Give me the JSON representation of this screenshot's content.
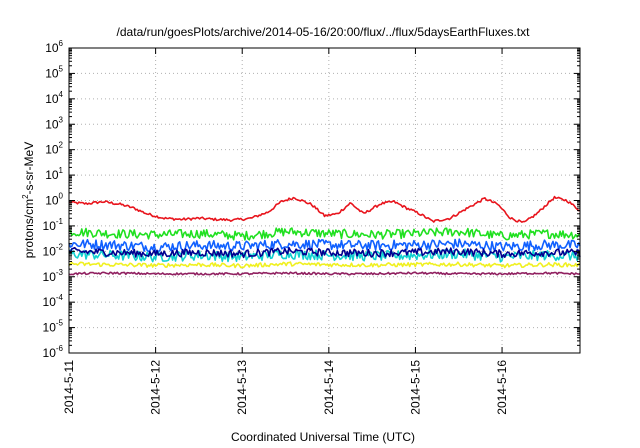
{
  "chart_data": {
    "type": "line",
    "title": "/data/run/goesPlots/archive/2014-05-16/20:00/flux/../flux/5daysEarthFluxes.txt",
    "xlabel": "Coordinated Universal Time (UTC)",
    "ylabel_parts": [
      "protons/cm",
      "2",
      "-s-sr-MeV"
    ],
    "yscale": "log",
    "ylim": [
      1e-06,
      1000000.0
    ],
    "xlim_days": [
      0,
      5.9
    ],
    "y_ticks": [
      {
        "base": "10",
        "exp": "-6",
        "value": -6
      },
      {
        "base": "10",
        "exp": "-5",
        "value": -5
      },
      {
        "base": "10",
        "exp": "-4",
        "value": -4
      },
      {
        "base": "10",
        "exp": "-3",
        "value": -3
      },
      {
        "base": "10",
        "exp": "-2",
        "value": -2
      },
      {
        "base": "10",
        "exp": "-1",
        "value": -1
      },
      {
        "base": "10",
        "exp": "0",
        "value": 0
      },
      {
        "base": "10",
        "exp": "1",
        "value": 1
      },
      {
        "base": "10",
        "exp": "2",
        "value": 2
      },
      {
        "base": "10",
        "exp": "3",
        "value": 3
      },
      {
        "base": "10",
        "exp": "4",
        "value": 4
      },
      {
        "base": "10",
        "exp": "5",
        "value": 5
      },
      {
        "base": "10",
        "exp": "6",
        "value": 6
      }
    ],
    "x_ticks": [
      {
        "label": "2014-5-11",
        "day": 0
      },
      {
        "label": "2014-5-12",
        "day": 1
      },
      {
        "label": "2014-5-13",
        "day": 2
      },
      {
        "label": "2014-5-14",
        "day": 3
      },
      {
        "label": "2014-5-15",
        "day": 4
      },
      {
        "label": "2014-5-16",
        "day": 5
      }
    ],
    "grid": true,
    "series": [
      {
        "color": "#e8141c",
        "x": [
          0,
          0.2,
          0.4,
          0.6,
          0.75,
          0.9,
          1.1,
          1.3,
          1.5,
          1.7,
          1.9,
          2.1,
          2.3,
          2.45,
          2.6,
          2.8,
          2.95,
          3.1,
          3.25,
          3.4,
          3.6,
          3.75,
          3.9,
          4.05,
          4.2,
          4.4,
          4.6,
          4.8,
          4.95,
          5.1,
          5.25,
          5.4,
          5.6,
          5.75,
          5.9
        ],
        "y": [
          0.85,
          0.75,
          0.9,
          0.7,
          0.5,
          0.3,
          0.2,
          0.18,
          0.2,
          0.18,
          0.17,
          0.2,
          0.35,
          0.9,
          1.3,
          0.7,
          0.25,
          0.3,
          0.8,
          0.3,
          0.75,
          0.9,
          0.5,
          0.3,
          0.15,
          0.2,
          0.5,
          1.2,
          0.7,
          0.2,
          0.13,
          0.3,
          1.3,
          1.0,
          0.4
        ]
      },
      {
        "color": "#20e020",
        "x": [
          0,
          0.5,
          1,
          1.5,
          2,
          2.5,
          3,
          3.5,
          4,
          4.5,
          5,
          5.5,
          5.9
        ],
        "y": [
          0.06,
          0.05,
          0.045,
          0.05,
          0.04,
          0.06,
          0.05,
          0.045,
          0.05,
          0.06,
          0.04,
          0.05,
          0.045
        ]
      },
      {
        "color": "#1060ff",
        "x": [
          0,
          0.5,
          1,
          1.5,
          2,
          2.5,
          3,
          3.5,
          4,
          4.5,
          5,
          5.5,
          5.9
        ],
        "y": [
          0.02,
          0.018,
          0.015,
          0.017,
          0.016,
          0.02,
          0.018,
          0.017,
          0.018,
          0.02,
          0.015,
          0.018,
          0.017
        ]
      },
      {
        "color": "#10d0d0",
        "x": [
          0,
          0.5,
          1,
          1.5,
          2,
          2.5,
          3,
          3.5,
          4,
          4.5,
          5,
          5.5,
          5.9
        ],
        "y": [
          0.008,
          0.007,
          0.006,
          0.007,
          0.006,
          0.008,
          0.007,
          0.0065,
          0.007,
          0.008,
          0.006,
          0.007,
          0.0065
        ]
      },
      {
        "color": "#000090",
        "x": [
          0,
          0.5,
          1,
          1.5,
          2,
          2.5,
          3,
          3.5,
          4,
          4.5,
          5,
          5.5,
          5.9
        ],
        "y": [
          0.01,
          0.009,
          0.008,
          0.009,
          0.008,
          0.01,
          0.009,
          0.0085,
          0.009,
          0.01,
          0.008,
          0.009,
          0.0085
        ]
      },
      {
        "color": "#f0f020",
        "x": [
          0,
          0.5,
          1,
          1.5,
          2,
          2.5,
          3,
          3.5,
          4,
          4.5,
          5,
          5.5,
          5.9
        ],
        "y": [
          0.0032,
          0.003,
          0.0028,
          0.003,
          0.0027,
          0.0032,
          0.003,
          0.0029,
          0.003,
          0.0031,
          0.0027,
          0.003,
          0.0029
        ]
      },
      {
        "color": "#902060",
        "x": [
          0,
          0.5,
          1,
          1.5,
          2,
          2.5,
          3,
          3.5,
          4,
          4.5,
          5,
          5.5,
          5.9
        ],
        "y": [
          0.0013,
          0.0014,
          0.0013,
          0.0013,
          0.0013,
          0.0014,
          0.0013,
          0.0013,
          0.0014,
          0.0013,
          0.0013,
          0.0014,
          0.0013
        ]
      }
    ]
  }
}
